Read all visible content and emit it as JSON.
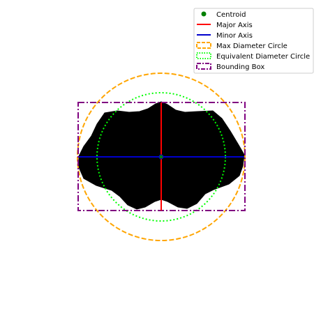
{
  "chart_data": {
    "type": "scatter",
    "title": "",
    "xlabel": "",
    "ylabel": "",
    "axes_visible": false,
    "grid": false,
    "legend_position": "top-right",
    "centroid": {
      "x": 231,
      "y": 225
    },
    "major_axis": {
      "x1": 231,
      "y1": 147,
      "x2": 231,
      "y2": 302
    },
    "minor_axis": {
      "x1": 113,
      "y1": 225,
      "x2": 350,
      "y2": 225
    },
    "max_diameter_circle": {
      "cx": 231,
      "cy": 225,
      "r": 120
    },
    "equivalent_diameter_circle": {
      "cx": 231,
      "cy": 225,
      "r": 92
    },
    "bounding_box": {
      "x0": 112,
      "y0": 147,
      "x1": 351,
      "y1": 302
    },
    "shape_outline": [
      [
        231,
        146
      ],
      [
        240,
        150
      ],
      [
        252,
        158
      ],
      [
        265,
        161
      ],
      [
        283,
        160
      ],
      [
        305,
        159
      ],
      [
        318,
        170
      ],
      [
        330,
        188
      ],
      [
        342,
        208
      ],
      [
        350,
        222
      ],
      [
        348,
        238
      ],
      [
        343,
        252
      ],
      [
        328,
        264
      ],
      [
        306,
        272
      ],
      [
        294,
        278
      ],
      [
        282,
        292
      ],
      [
        268,
        299
      ],
      [
        255,
        297
      ],
      [
        240,
        289
      ],
      [
        231,
        286
      ],
      [
        222,
        289
      ],
      [
        208,
        297
      ],
      [
        196,
        300
      ],
      [
        183,
        294
      ],
      [
        172,
        282
      ],
      [
        160,
        273
      ],
      [
        138,
        266
      ],
      [
        120,
        256
      ],
      [
        113,
        240
      ],
      [
        113,
        224
      ],
      [
        120,
        210
      ],
      [
        131,
        195
      ],
      [
        139,
        178
      ],
      [
        150,
        162
      ],
      [
        168,
        159
      ],
      [
        185,
        161
      ],
      [
        200,
        160
      ],
      [
        212,
        156
      ],
      [
        223,
        149
      ]
    ],
    "colors": {
      "shape": "#000000",
      "centroid": "#008000",
      "major_axis": "#ff0000",
      "minor_axis": "#0000cc",
      "max_diameter_circle": "#ffa500",
      "equivalent_diameter_circle": "#00ff00",
      "bounding_box": "#800080"
    },
    "legend": [
      {
        "label": "Centroid",
        "kind": "marker",
        "color": "#008000"
      },
      {
        "label": "Major Axis",
        "kind": "solid",
        "color": "#ff0000"
      },
      {
        "label": "Minor Axis",
        "kind": "solid",
        "color": "#0000cc"
      },
      {
        "label": "Max Diameter Circle",
        "kind": "dashed",
        "color": "#ffa500"
      },
      {
        "label": "Equivalent Diameter Circle",
        "kind": "dotted",
        "color": "#00ff00"
      },
      {
        "label": "Bounding Box",
        "kind": "dashdot",
        "color": "#800080"
      }
    ]
  }
}
